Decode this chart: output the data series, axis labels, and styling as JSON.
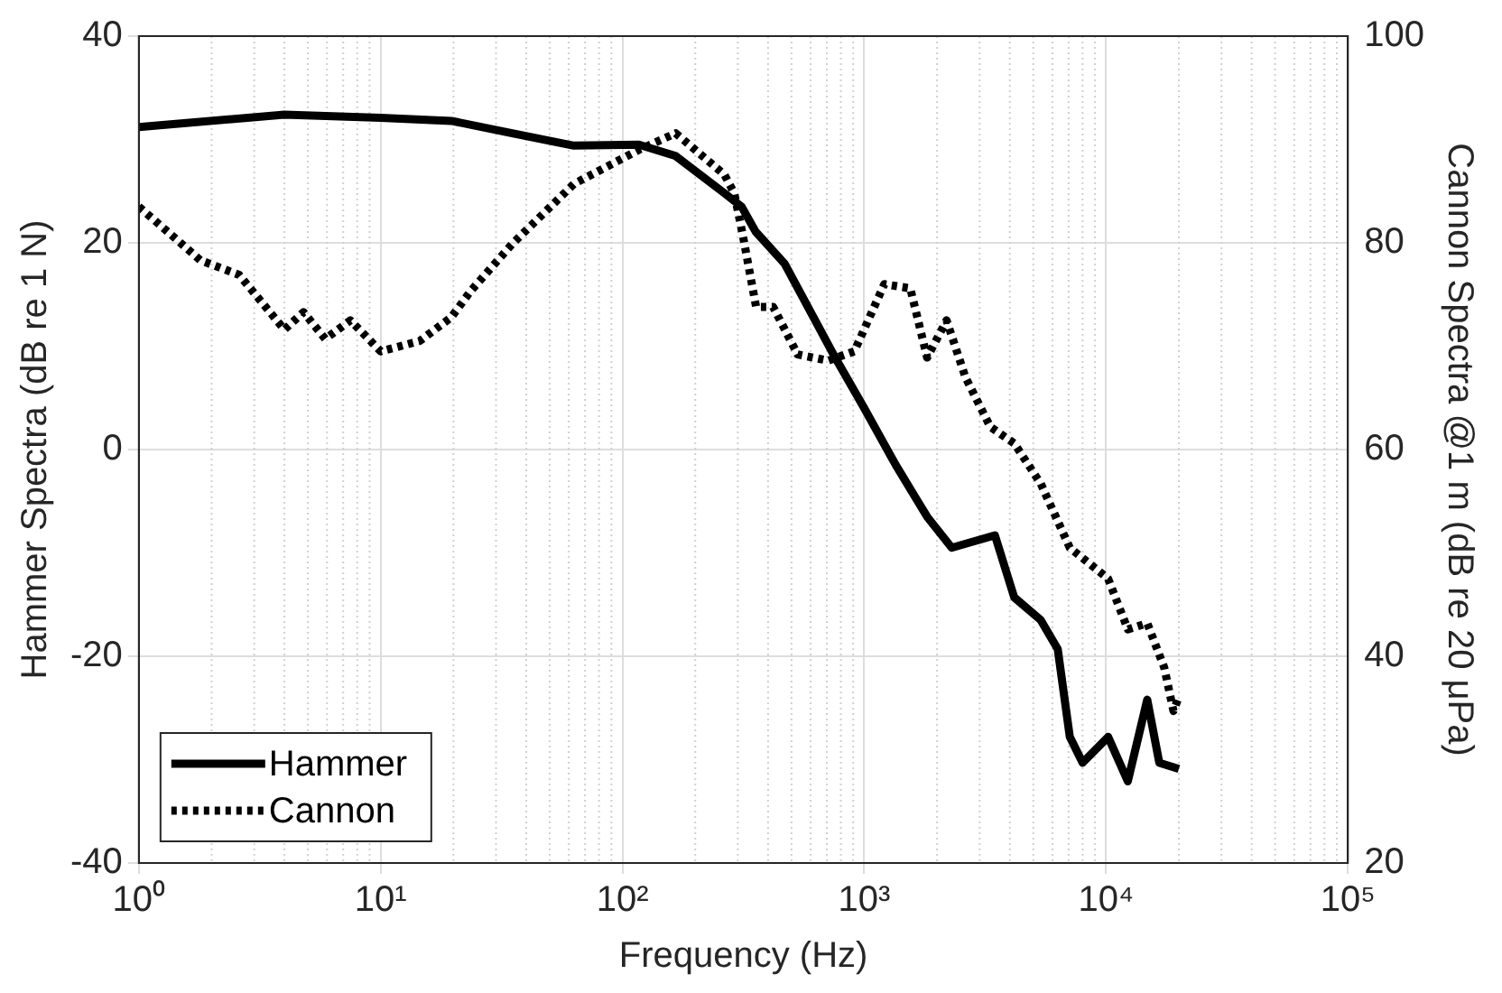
{
  "chart_data": {
    "type": "line",
    "xlabel": "Frequency (Hz)",
    "ylabel": "Hammer Spectra (dB re 1 N)",
    "y2label": "Cannon Spectra @1 m (dB re 20 μPa)",
    "log": "x",
    "grid": true,
    "legend": "bottom left",
    "marker": "none",
    "xlim": [
      1,
      100000
    ],
    "xticks": [
      {
        "value": 1,
        "label": "10⁰"
      },
      {
        "value": 10,
        "label": "10¹"
      },
      {
        "value": 100,
        "label": "10²"
      },
      {
        "value": 1000,
        "label": "10³"
      },
      {
        "value": 10000,
        "label": "10⁴"
      },
      {
        "value": 100000,
        "label": "10⁵"
      }
    ],
    "ylim": [
      -40,
      40
    ],
    "yticks": [
      -40,
      -20,
      0,
      20,
      40
    ],
    "y2lim": [
      20,
      100
    ],
    "y2ticks": [
      20,
      40,
      60,
      80,
      100
    ],
    "series": [
      {
        "name": "Hammer",
        "color": "#000000",
        "line_style": "solid",
        "x": [
          1,
          4,
          10,
          19.6,
          35,
          63,
          117,
          166,
          264,
          311,
          355,
          468,
          758,
          1000,
          1350,
          1820,
          2300,
          3470,
          4170,
          5370,
          6310,
          7080,
          8000,
          10200,
          12300,
          14800,
          16600,
          20000
        ],
        "values": [
          31.2,
          32.4,
          32.1,
          31.8,
          30.6,
          29.4,
          29.5,
          28.4,
          24.8,
          23.5,
          21.1,
          18,
          8.9,
          4,
          -1.5,
          -6.5,
          -9.5,
          -8.3,
          -14.3,
          -16.5,
          -19.3,
          -27.8,
          -30.3,
          -27.8,
          -32.1,
          -24.2,
          -30.3,
          -30.9
        ]
      },
      {
        "name": "Cannon",
        "color": "#000000",
        "line_style": "dotted",
        "axis": "y2",
        "x": [
          1,
          1.8,
          2.6,
          4,
          4.8,
          5.9,
          7.5,
          10,
          14.5,
          19.6,
          23.5,
          35,
          63,
          117,
          166,
          264,
          290,
          316,
          357,
          420,
          530,
          710,
          910,
          1210,
          1550,
          1820,
          2190,
          2620,
          3320,
          4170,
          5370,
          7080,
          10200,
          12300,
          14800,
          17400,
          19000,
          20000
        ],
        "values": [
          83.5,
          78.3,
          76.9,
          71.6,
          73.3,
          70.7,
          72.5,
          69.5,
          70.5,
          72.8,
          75.3,
          79.9,
          85.7,
          89,
          90.6,
          86.6,
          84.8,
          80.5,
          73.8,
          73.8,
          69.2,
          68.6,
          69.5,
          76,
          75.6,
          68.9,
          72.5,
          67,
          62.2,
          60.6,
          56.7,
          50.5,
          47.5,
          42.6,
          43.2,
          38.9,
          34.7,
          36.1
        ]
      }
    ]
  }
}
